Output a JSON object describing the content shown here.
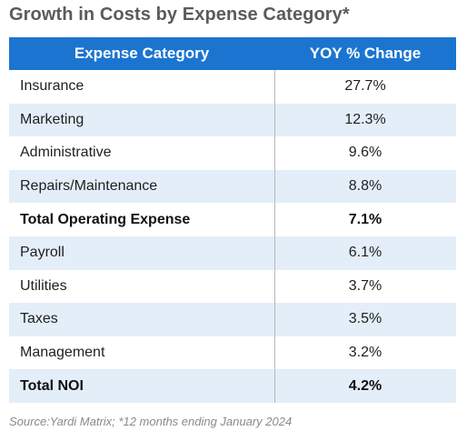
{
  "title": "Growth in Costs by Expense Category*",
  "source": "Source:Yardi Matrix; *12 months ending January 2024",
  "colors": {
    "header_bg": "#1b75d0",
    "shaded_row": "#e3eef9",
    "title_text": "#5b5b5b"
  },
  "chart_data": {
    "type": "table",
    "title": "Growth in Costs by Expense Category*",
    "columns": [
      "Expense Category",
      "YOY % Change"
    ],
    "rows": [
      {
        "category": "Insurance",
        "value": "27.7%",
        "bold": false
      },
      {
        "category": "Marketing",
        "value": "12.3%",
        "bold": false
      },
      {
        "category": "Administrative",
        "value": "9.6%",
        "bold": false
      },
      {
        "category": "Repairs/Maintenance",
        "value": "8.8%",
        "bold": false
      },
      {
        "category": "Total Operating Expense",
        "value": "7.1%",
        "bold": true
      },
      {
        "category": "Payroll",
        "value": "6.1%",
        "bold": false
      },
      {
        "category": "Utilities",
        "value": "3.7%",
        "bold": false
      },
      {
        "category": "Taxes",
        "value": "3.5%",
        "bold": false
      },
      {
        "category": "Management",
        "value": "3.2%",
        "bold": false
      },
      {
        "category": "Total NOI",
        "value": "4.2%",
        "bold": true
      }
    ]
  }
}
